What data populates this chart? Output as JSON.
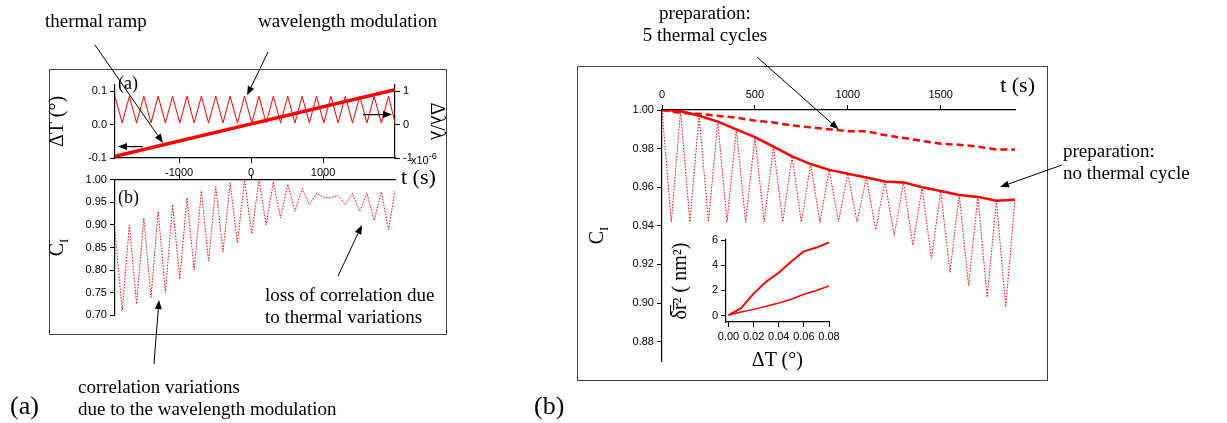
{
  "chart_data": [
    {
      "type": "line",
      "ylabel": "ΔT (°)",
      "y2label": "Δλ/λ",
      "xlim": [
        -1890,
        2000
      ],
      "xticks": [
        -1000,
        0,
        1000
      ],
      "ylim": [
        -0.1,
        0.12
      ],
      "yticks": [
        -0.1,
        {
          "value": 0,
          "label": "0.0"
        },
        0.1
      ],
      "y2lim": [
        -1,
        1.2
      ],
      "y2ticks": [
        -1,
        0,
        1
      ],
      "x": [
        -1890,
        -1790,
        -1690,
        -1590,
        -1490,
        -1390,
        -1290,
        -1190,
        -1090,
        -990,
        -890,
        -790,
        -690,
        -590,
        -490,
        -390,
        -290,
        -190,
        -90,
        10,
        110,
        210,
        310,
        410,
        510,
        610,
        710,
        810,
        910,
        1010,
        1110,
        1210,
        1310,
        1410,
        1510,
        1610,
        1710,
        1810,
        1910,
        2000
      ],
      "series": [
        {
          "color": "#ff0000",
          "axis": "y2",
          "line_style": "solid",
          "values": [
            0.85,
            0.05,
            0.85,
            0.05,
            0.85,
            0.05,
            0.85,
            0.05,
            0.85,
            0.05,
            0.85,
            0.05,
            0.85,
            0.05,
            0.85,
            0.05,
            0.85,
            0.05,
            0.85,
            0.05,
            0.85,
            0.05,
            0.85,
            0.05,
            0.85,
            0.05,
            0.85,
            0.05,
            0.85,
            0.05,
            0.85,
            0.05,
            0.85,
            0.05,
            0.85,
            0.05,
            0.85,
            0.05,
            0.85,
            0.05
          ]
        },
        {
          "color": "#ff0000",
          "line_style": "solid",
          "x": [
            -1890,
            2000
          ],
          "values": [
            -0.095,
            0.105
          ]
        }
      ],
      "annotations": [
        "(a)",
        "thermal ramp",
        {
          "text": "wavelength modulation",
          "x": -55,
          "y": 0.088
        },
        "x10$^{-6}$"
      ]
    },
    {
      "type": "line",
      "xlabel": "t (s)",
      "ylabel": "C$_{I}$",
      "tick_labels": "y",
      "xlim": [
        -1890,
        2000
      ],
      "xticks": [
        -1000,
        0,
        1000
      ],
      "ylim": [
        0.7,
        1.0
      ],
      "yticks": [
        {
          "value": 0.7,
          "label": "0.70"
        },
        0.75,
        {
          "value": 0.8,
          "label": "0.80"
        },
        0.85,
        {
          "value": 0.9,
          "label": "0.90"
        },
        0.95,
        {
          "value": 1,
          "label": "1.00"
        }
      ],
      "x": [
        -1890,
        -1790,
        -1690,
        -1590,
        -1490,
        -1390,
        -1290,
        -1190,
        -1090,
        -990,
        -890,
        -790,
        -690,
        -590,
        -490,
        -390,
        -290,
        -190,
        -90,
        10,
        110,
        210,
        310,
        410,
        510,
        610,
        710,
        810,
        910,
        1010,
        1110,
        1210,
        1310,
        1410,
        1510,
        1610,
        1710,
        1810,
        1910,
        2000
      ],
      "series": [
        {
          "color": "#ff0000",
          "line_style": "dotted",
          "values": [
            0.885,
            0.71,
            0.9,
            0.725,
            0.915,
            0.74,
            0.93,
            0.75,
            0.945,
            0.78,
            0.96,
            0.8,
            0.975,
            0.82,
            0.985,
            0.84,
            0.993,
            0.86,
            0.999,
            0.88,
            1.0,
            0.9,
            0.995,
            0.915,
            0.99,
            0.93,
            0.98,
            0.945,
            0.97,
            0.96,
            0.96,
            0.965,
            0.945,
            0.97,
            0.93,
            0.97,
            0.91,
            0.973,
            0.89,
            0.975
          ]
        }
      ],
      "annotations": [
        "(b)",
        "loss of correlation due\nto thermal variations",
        "correlation variations\ndue to the wavelength modulation",
        "(a)"
      ]
    },
    {
      "type": "line",
      "xlabel": "t (s)",
      "ylabel": "C$_{I}$",
      "xlim": [
        0,
        1900
      ],
      "xticks": [
        0,
        500,
        1000,
        1500
      ],
      "ylim": [
        0.87,
        1.0
      ],
      "yticks": [
        0.88,
        {
          "value": 0.9,
          "label": "0.90"
        },
        0.92,
        0.94,
        0.96,
        0.98,
        {
          "value": 1,
          "label": "1.00"
        }
      ],
      "series": [
        {
          "color": "#ff0000",
          "line_style": "dotted",
          "x": [
            0,
            50,
            100,
            150,
            200,
            250,
            300,
            350,
            400,
            450,
            500,
            550,
            600,
            650,
            700,
            750,
            800,
            850,
            900,
            950,
            1000,
            1050,
            1100,
            1150,
            1200,
            1250,
            1300,
            1350,
            1400,
            1450,
            1500,
            1550,
            1600,
            1650,
            1700,
            1750,
            1800,
            1850,
            1900
          ],
          "values": [
            1.0,
            0.942,
            0.9995,
            0.942,
            0.997,
            0.942,
            0.994,
            0.942,
            0.99,
            0.942,
            0.986,
            0.942,
            0.981,
            0.942,
            0.976,
            0.942,
            0.972,
            0.942,
            0.969,
            0.942,
            0.967,
            0.942,
            0.965,
            0.938,
            0.963,
            0.935,
            0.9625,
            0.93,
            0.96,
            0.923,
            0.958,
            0.916,
            0.956,
            0.909,
            0.955,
            0.903,
            0.953,
            0.898,
            0.9535
          ]
        },
        {
          "color": "#ff0000",
          "line_style": "solid",
          "x": [
            0,
            100,
            200,
            300,
            400,
            500,
            600,
            700,
            800,
            900,
            1000,
            1100,
            1200,
            1300,
            1400,
            1500,
            1600,
            1700,
            1800,
            1900
          ],
          "values": [
            1.0,
            0.9995,
            0.997,
            0.994,
            0.99,
            0.986,
            0.981,
            0.976,
            0.972,
            0.969,
            0.967,
            0.965,
            0.963,
            0.9625,
            0.96,
            0.958,
            0.956,
            0.955,
            0.953,
            0.9535
          ]
        },
        {
          "color": "#ff0000",
          "line_style": "dashed",
          "x": [
            0,
            100,
            200,
            300,
            400,
            500,
            600,
            700,
            800,
            900,
            1000,
            1100,
            1200,
            1300,
            1400,
            1500,
            1600,
            1700,
            1800,
            1900
          ],
          "values": [
            1.0,
            0.9985,
            0.998,
            0.997,
            0.996,
            0.9945,
            0.9935,
            0.992,
            0.991,
            0.99,
            0.989,
            0.989,
            0.987,
            0.9855,
            0.984,
            0.9825,
            0.982,
            0.981,
            0.9795,
            0.9795
          ]
        }
      ],
      "annotations": [
        {
          "text": "preparation:\n5 thermal cycles",
          "x": 950,
          "y": 0.99
        },
        "preparation:\nno thermal cycle",
        "(b)"
      ]
    },
    {
      "type": "line",
      "xlabel": "ΔT (°)",
      "ylabel": "δ̅r̅² ( nm²)",
      "xlim": [
        -0.002,
        0.08
      ],
      "xticks": [
        {
          "value": 0,
          "label": "0.00"
        },
        0.02,
        0.04,
        0.06,
        0.08
      ],
      "ylim": [
        -0.5,
        6
      ],
      "yticks": [
        0,
        2,
        4,
        6
      ],
      "x": [
        0,
        0.01,
        0.02,
        0.03,
        0.04,
        0.05,
        0.06,
        0.07,
        0.08
      ],
      "series": [
        {
          "color": "#ff0000",
          "line_style": "solid",
          "values": [
            0.05,
            0.6,
            1.75,
            2.7,
            3.4,
            4.3,
            5.1,
            5.4,
            5.8
          ]
        },
        {
          "color": "#ff0000",
          "line_style": "solid",
          "values": [
            0.05,
            0.3,
            0.5,
            0.75,
            1.0,
            1.3,
            1.7,
            2.0,
            2.35
          ]
        }
      ]
    }
  ]
}
